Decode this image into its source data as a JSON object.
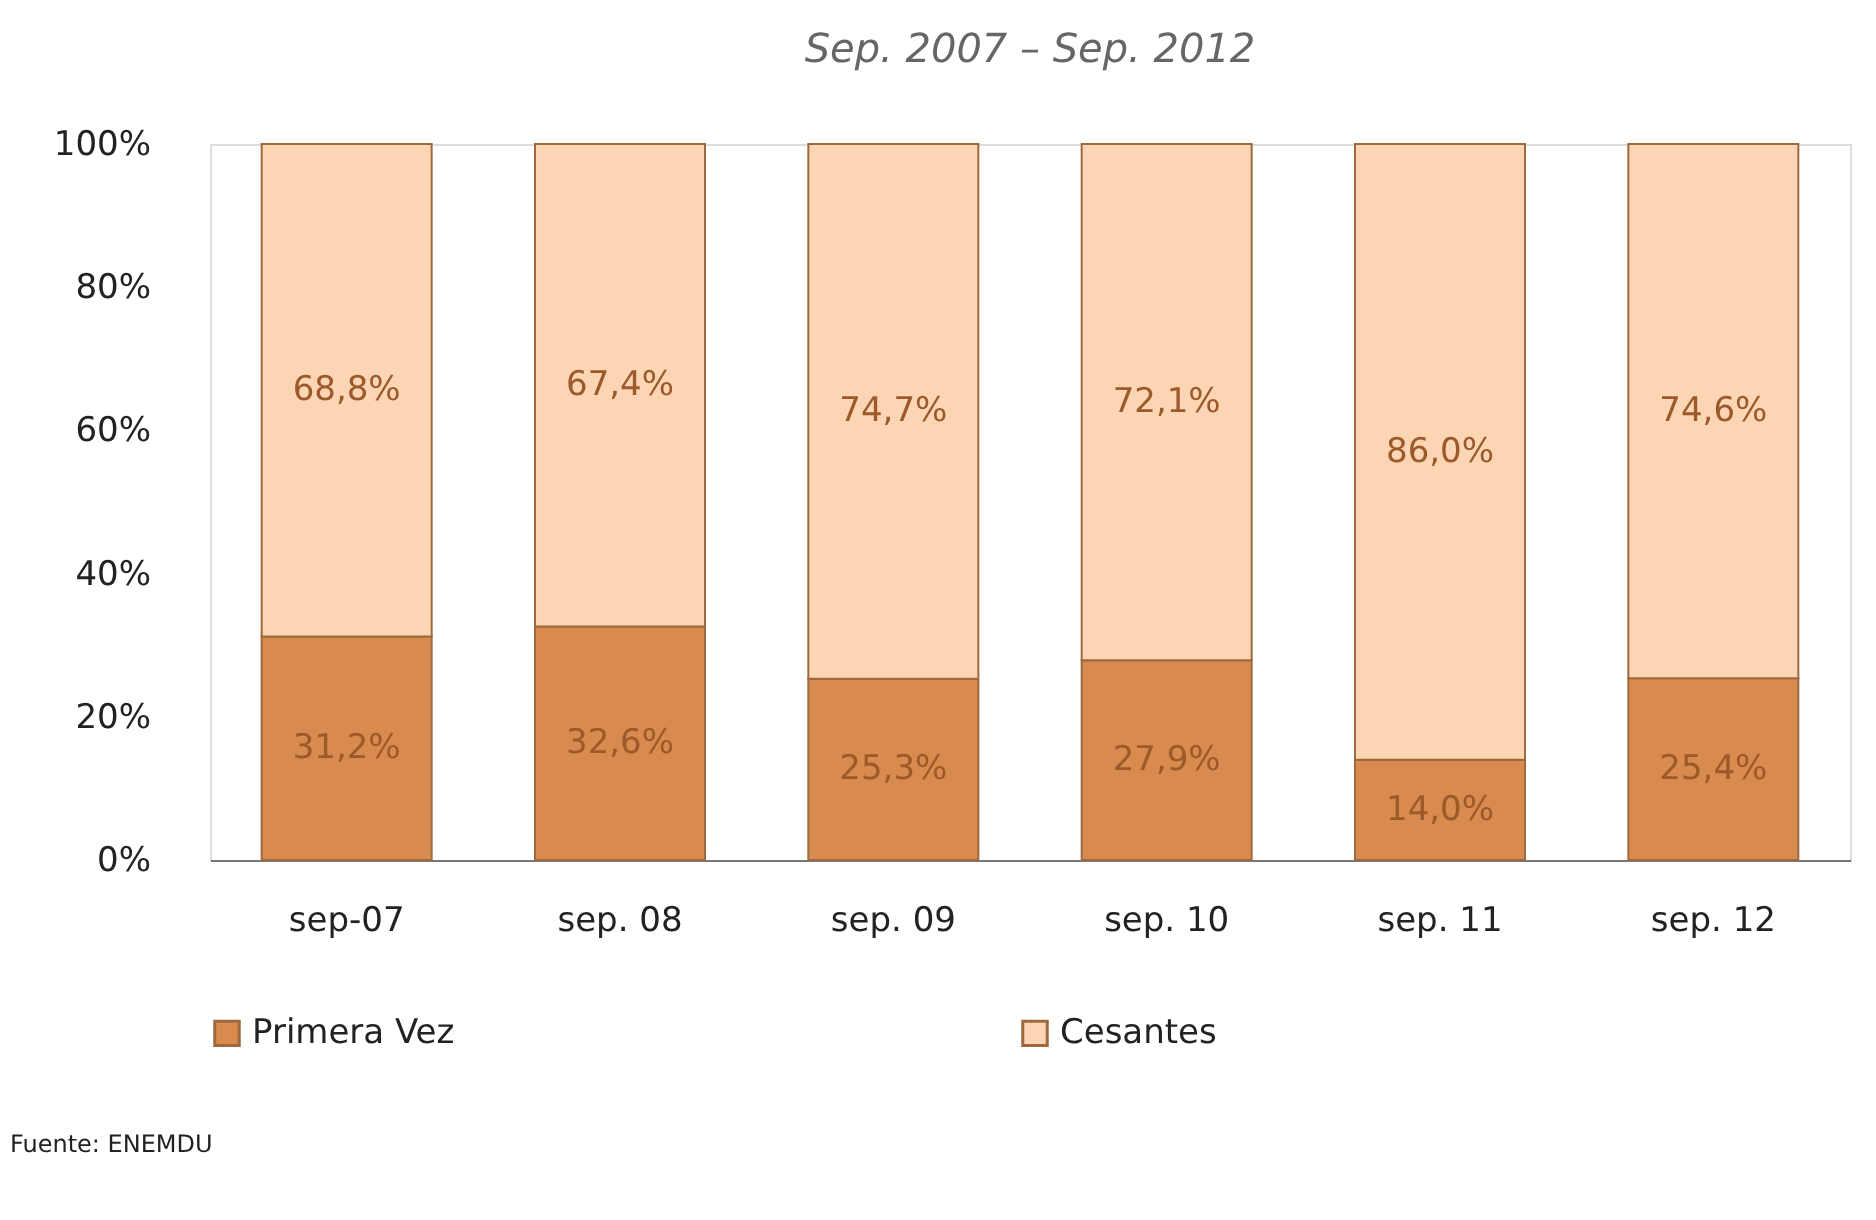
{
  "chart_data": {
    "type": "bar",
    "stacked": true,
    "title": "Sep. 2007 – Sep. 2012",
    "categories": [
      "sep-07",
      "sep. 08",
      "sep. 09",
      "sep. 10",
      "sep. 11",
      "sep. 12"
    ],
    "series": [
      {
        "name": "Primera Vez",
        "color": "#d98a4e",
        "values": [
          31.2,
          32.6,
          25.3,
          27.9,
          14.0,
          25.4
        ],
        "value_labels": [
          "31,2%",
          "32,6%",
          "25,3%",
          "27,9%",
          "14,0%",
          "25,4%"
        ]
      },
      {
        "name": "Cesantes",
        "color": "#fcd5b5",
        "values": [
          68.8,
          67.4,
          74.7,
          72.1,
          86.0,
          74.6
        ],
        "value_labels": [
          "68,8%",
          "67,4%",
          "74,7%",
          "72,1%",
          "86,0%",
          "74,6%"
        ]
      }
    ],
    "ylim": [
      0,
      100
    ],
    "yticks": [
      {
        "value": 0,
        "label": "0%"
      },
      {
        "value": 20,
        "label": "20%"
      },
      {
        "value": 40,
        "label": "40%"
      },
      {
        "value": 60,
        "label": "60%"
      },
      {
        "value": 80,
        "label": "80%"
      },
      {
        "value": 100,
        "label": "100%"
      }
    ],
    "grid": false,
    "legend": "bottom",
    "annotations": [
      "Fuente: ENEMDU"
    ]
  }
}
